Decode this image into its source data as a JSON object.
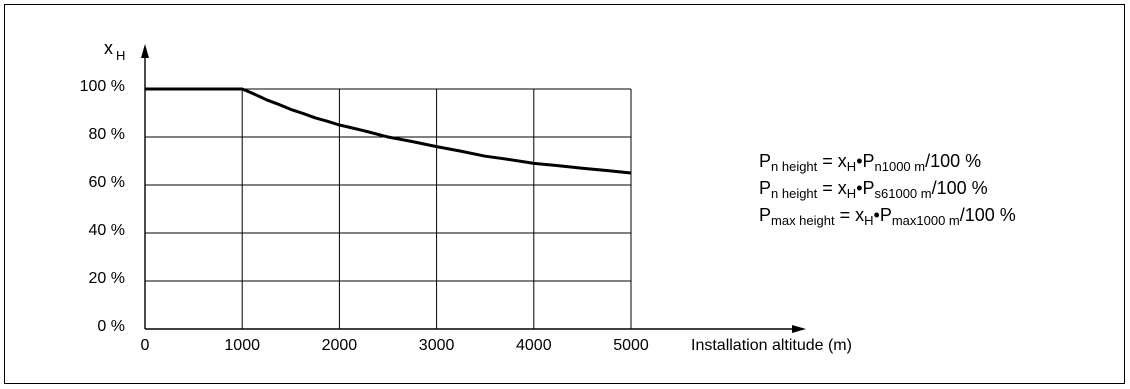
{
  "chart_data": {
    "type": "line",
    "ylabel_main": "x",
    "ylabel_sub": "H",
    "xlabel": "Installation altitude (m)",
    "xlim": [
      0,
      5000
    ],
    "ylim": [
      0,
      100
    ],
    "x_ticks": [
      0,
      1000,
      2000,
      3000,
      4000,
      5000
    ],
    "x_tick_labels": [
      "0",
      "1000",
      "2000",
      "3000",
      "4000",
      "5000"
    ],
    "y_ticks": [
      0,
      20,
      40,
      60,
      80,
      100
    ],
    "y_tick_labels": [
      "0 %",
      "20 %",
      "40 %",
      "60 %",
      "80 %",
      "100 %"
    ],
    "grid": true,
    "series": [
      {
        "x": [
          0,
          1000,
          1250,
          1500,
          1750,
          2000,
          2500,
          3000,
          3500,
          4000,
          4500,
          5000
        ],
        "y": [
          100,
          100,
          95.5,
          91.5,
          88,
          85,
          80,
          76,
          72,
          69,
          67,
          65
        ]
      }
    ]
  },
  "formulas": [
    {
      "parts": [
        {
          "t": "P"
        },
        {
          "t": "n height",
          "sub": true
        },
        {
          "t": " = x"
        },
        {
          "t": "H",
          "sub": true
        },
        {
          "t": "•P"
        },
        {
          "t": "n1000 m",
          "sub": true
        },
        {
          "t": "/100 %"
        }
      ]
    },
    {
      "parts": [
        {
          "t": "P"
        },
        {
          "t": "n height",
          "sub": true
        },
        {
          "t": " = x"
        },
        {
          "t": "H",
          "sub": true
        },
        {
          "t": "•P"
        },
        {
          "t": "s61000 m",
          "sub": true
        },
        {
          "t": "/100 %"
        }
      ]
    },
    {
      "parts": [
        {
          "t": "P"
        },
        {
          "t": "max height",
          "sub": true
        },
        {
          "t": " = x"
        },
        {
          "t": "H",
          "sub": true
        },
        {
          "t": "•P"
        },
        {
          "t": "max1000 m",
          "sub": true
        },
        {
          "t": "/100 %"
        }
      ]
    }
  ]
}
